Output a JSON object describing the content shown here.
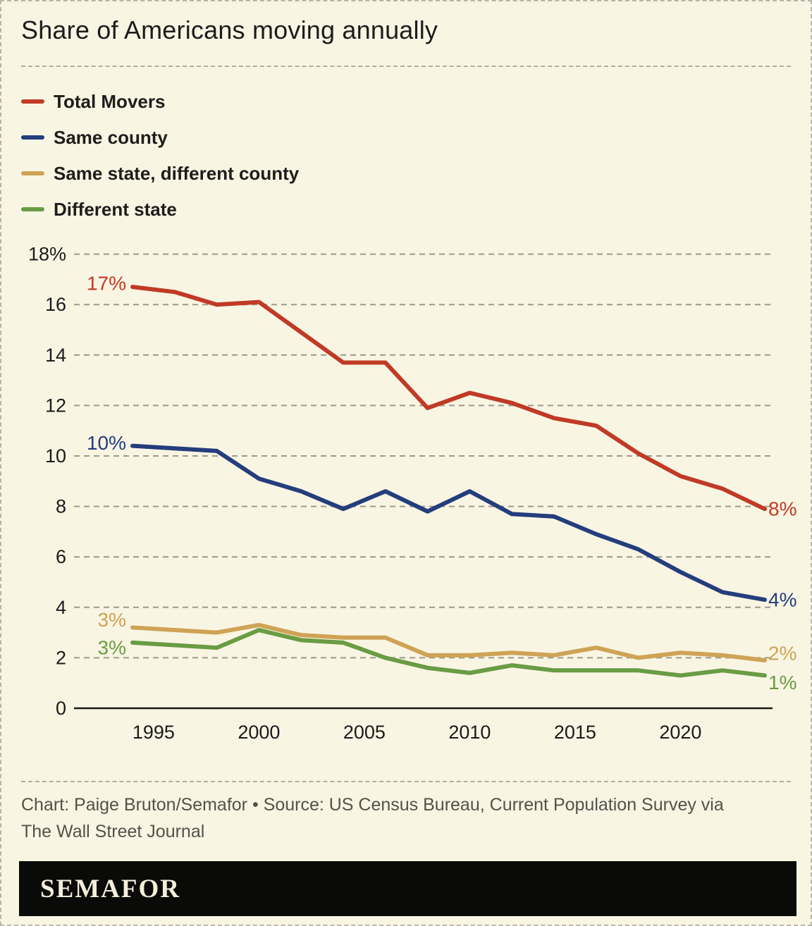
{
  "header": {
    "title": "Share of Americans moving annually"
  },
  "footer": {
    "credit_line1": "Chart: Paige Bruton/Semafor • Source: US Census Bureau, Current Population Survey via",
    "credit_line2": "The Wall Street Journal"
  },
  "logo": {
    "text": "SEMAFOR",
    "bar_color": "#0a0a08",
    "text_color": "#f4efdb"
  },
  "colors": {
    "background": "#f9f5e3",
    "axis": "#1a1a1a",
    "grid": "#9a9a8c",
    "divider": "#aeaea2",
    "footer_text": "#52524a"
  },
  "chart_data": {
    "type": "line",
    "title": "Share of Americans moving annually",
    "x": [
      1994,
      1996,
      1998,
      2000,
      2002,
      2004,
      2006,
      2008,
      2010,
      2012,
      2014,
      2016,
      2018,
      2020,
      2022,
      2024
    ],
    "xticks": [
      1995,
      2000,
      2005,
      2010,
      2015,
      2020
    ],
    "ylim": [
      0,
      18
    ],
    "yticks": [
      0,
      2,
      4,
      6,
      8,
      10,
      12,
      14,
      16,
      18
    ],
    "ytick_labels": [
      "0",
      "2",
      "4",
      "6",
      "8",
      "10",
      "12",
      "14",
      "16",
      "18%"
    ],
    "grid": "horizontal-dashed",
    "legend_position": "top-left",
    "axis_color": "#1a1a1a",
    "grid_color": "#9a9a8c",
    "series": [
      {
        "name": "Total Movers",
        "color": "#c03a26",
        "start_label": "17%",
        "end_label": "8%",
        "values": [
          16.7,
          16.5,
          16.0,
          16.1,
          14.9,
          13.7,
          13.7,
          11.9,
          12.5,
          12.1,
          11.5,
          11.2,
          10.1,
          9.2,
          8.7,
          7.9
        ]
      },
      {
        "name": "Same county",
        "color": "#243d7c",
        "start_label": "10%",
        "end_label": "4%",
        "values": [
          10.4,
          10.3,
          10.2,
          9.1,
          8.6,
          7.9,
          8.6,
          7.8,
          8.6,
          7.7,
          7.6,
          6.9,
          6.3,
          5.4,
          4.6,
          4.3
        ]
      },
      {
        "name": "Same state, different county",
        "color": "#cfa355",
        "start_label": "3%",
        "end_label": "2%",
        "values": [
          3.2,
          3.1,
          3.0,
          3.3,
          2.9,
          2.8,
          2.8,
          2.1,
          2.1,
          2.2,
          2.1,
          2.4,
          2.0,
          2.2,
          2.1,
          1.9
        ]
      },
      {
        "name": "Different state",
        "color": "#699c44",
        "start_label": "3%",
        "end_label": "1%",
        "values": [
          2.6,
          2.5,
          2.4,
          3.1,
          2.7,
          2.6,
          2.0,
          1.6,
          1.4,
          1.7,
          1.5,
          1.5,
          1.5,
          1.3,
          1.5,
          1.3
        ]
      }
    ]
  }
}
